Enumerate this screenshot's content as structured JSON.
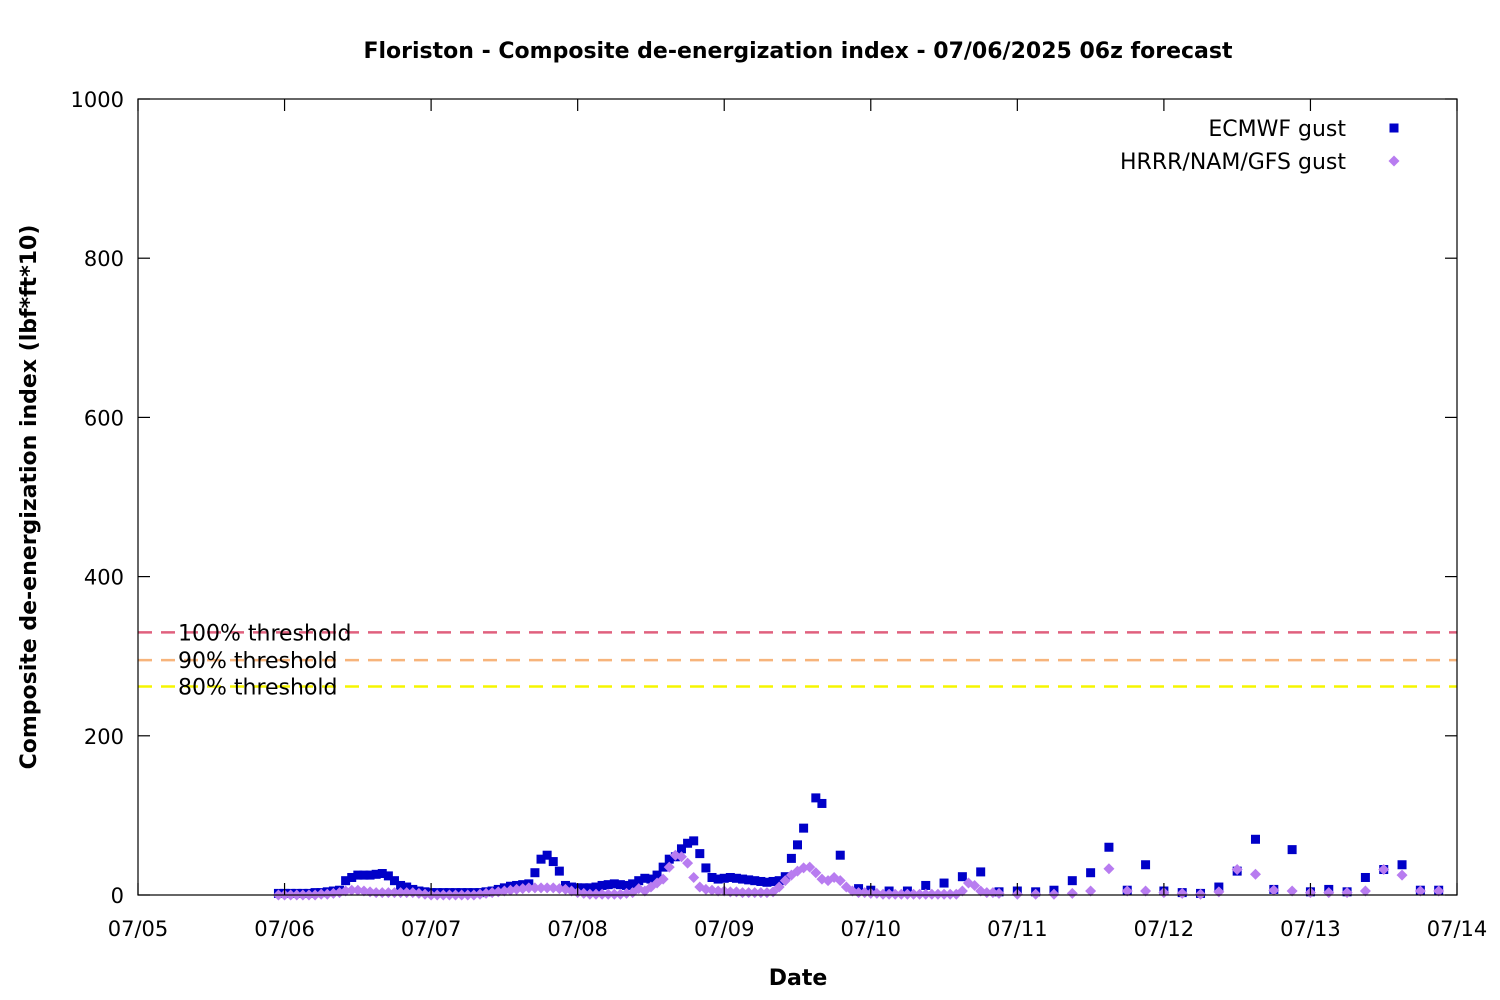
{
  "chart_data": {
    "type": "scatter",
    "title": "Floriston - Composite de-energization index - 07/06/2025 06z forecast",
    "xlabel": "Date",
    "ylabel": "Composite de-energization index (lbf*ft*10)",
    "x_start": "07/05",
    "x_end": "07/14",
    "xlim_days": [
      0,
      9
    ],
    "x_tick_labels": [
      "07/05",
      "07/06",
      "07/07",
      "07/08",
      "07/09",
      "07/10",
      "07/11",
      "07/12",
      "07/13",
      "07/14"
    ],
    "ylim": [
      0,
      1000
    ],
    "y_tick_labels": [
      "0",
      "200",
      "400",
      "600",
      "800",
      "1000"
    ],
    "y_ticks": [
      0,
      200,
      400,
      600,
      800,
      1000
    ],
    "grid": false,
    "legend_position": "top-right",
    "thresholds": [
      {
        "label": "100% threshold",
        "value": 330,
        "color": "#e0607e"
      },
      {
        "label": "90% threshold",
        "value": 295,
        "color": "#f7b47b"
      },
      {
        "label": "80% threshold",
        "value": 262,
        "color": "#f5f500"
      }
    ],
    "series": [
      {
        "name": "ECMWF gust",
        "marker": "square",
        "color": "#0000c8",
        "points": [
          [
            "07/05 23z",
            2
          ],
          [
            "07/06 00z",
            2
          ],
          [
            "07/06 01z",
            2
          ],
          [
            "07/06 02z",
            2
          ],
          [
            "07/06 03z",
            2
          ],
          [
            "07/06 04z",
            2
          ],
          [
            "07/06 05z",
            3
          ],
          [
            "07/06 06z",
            3
          ],
          [
            "07/06 07z",
            4
          ],
          [
            "07/06 08z",
            5
          ],
          [
            "07/06 09z",
            6
          ],
          [
            "07/06 10z",
            18
          ],
          [
            "07/06 11z",
            22
          ],
          [
            "07/06 12z",
            25
          ],
          [
            "07/06 13z",
            25
          ],
          [
            "07/06 14z",
            25
          ],
          [
            "07/06 15z",
            26
          ],
          [
            "07/06 16z",
            27
          ],
          [
            "07/06 17z",
            24
          ],
          [
            "07/06 18z",
            18
          ],
          [
            "07/06 19z",
            12
          ],
          [
            "07/06 20z",
            10
          ],
          [
            "07/06 21z",
            7
          ],
          [
            "07/06 22z",
            5
          ],
          [
            "07/06 23z",
            4
          ],
          [
            "07/07 00z",
            3
          ],
          [
            "07/07 01z",
            3
          ],
          [
            "07/07 02z",
            3
          ],
          [
            "07/07 03z",
            3
          ],
          [
            "07/07 04z",
            3
          ],
          [
            "07/07 05z",
            3
          ],
          [
            "07/07 06z",
            3
          ],
          [
            "07/07 07z",
            3
          ],
          [
            "07/07 08z",
            3
          ],
          [
            "07/07 09z",
            4
          ],
          [
            "07/07 10z",
            5
          ],
          [
            "07/07 11z",
            7
          ],
          [
            "07/07 12z",
            9
          ],
          [
            "07/07 13z",
            11
          ],
          [
            "07/07 14z",
            12
          ],
          [
            "07/07 15z",
            13
          ],
          [
            "07/07 16z",
            14
          ],
          [
            "07/07 17z",
            28
          ],
          [
            "07/07 18z",
            45
          ],
          [
            "07/07 19z",
            50
          ],
          [
            "07/07 20z",
            42
          ],
          [
            "07/07 21z",
            30
          ],
          [
            "07/07 22z",
            12
          ],
          [
            "07/07 23z",
            10
          ],
          [
            "07/08 00z",
            9
          ],
          [
            "07/08 01z",
            9
          ],
          [
            "07/08 02z",
            9
          ],
          [
            "07/08 03z",
            10
          ],
          [
            "07/08 04z",
            12
          ],
          [
            "07/08 05z",
            13
          ],
          [
            "07/08 06z",
            14
          ],
          [
            "07/08 07z",
            13
          ],
          [
            "07/08 08z",
            12
          ],
          [
            "07/08 09z",
            14
          ],
          [
            "07/08 10z",
            18
          ],
          [
            "07/08 11z",
            21
          ],
          [
            "07/08 12z",
            20
          ],
          [
            "07/08 13z",
            25
          ],
          [
            "07/08 14z",
            35
          ],
          [
            "07/08 15z",
            45
          ],
          [
            "07/08 16z",
            48
          ],
          [
            "07/08 17z",
            58
          ],
          [
            "07/08 18z",
            65
          ],
          [
            "07/08 19z",
            68
          ],
          [
            "07/08 20z",
            52
          ],
          [
            "07/08 21z",
            34
          ],
          [
            "07/08 22z",
            22
          ],
          [
            "07/08 23z",
            20
          ],
          [
            "07/09 00z",
            21
          ],
          [
            "07/09 01z",
            22
          ],
          [
            "07/09 02z",
            21
          ],
          [
            "07/09 03z",
            20
          ],
          [
            "07/09 04z",
            19
          ],
          [
            "07/09 05z",
            18
          ],
          [
            "07/09 06z",
            17
          ],
          [
            "07/09 07z",
            16
          ],
          [
            "07/09 08z",
            17
          ],
          [
            "07/09 09z",
            18
          ],
          [
            "07/09 10z",
            23
          ],
          [
            "07/09 11z",
            46
          ],
          [
            "07/09 12z",
            63
          ],
          [
            "07/09 13z",
            84
          ],
          [
            "07/09 15z",
            122
          ],
          [
            "07/09 16z",
            115
          ],
          [
            "07/09 19z",
            50
          ],
          [
            "07/09 22z",
            8
          ],
          [
            "07/10 00z",
            6
          ],
          [
            "07/10 03z",
            5
          ],
          [
            "07/10 06z",
            5
          ],
          [
            "07/10 09z",
            12
          ],
          [
            "07/10 12z",
            15
          ],
          [
            "07/10 15z",
            23
          ],
          [
            "07/10 18z",
            29
          ],
          [
            "07/10 21z",
            4
          ],
          [
            "07/11 00z",
            5
          ],
          [
            "07/11 03z",
            4
          ],
          [
            "07/11 06z",
            6
          ],
          [
            "07/11 09z",
            18
          ],
          [
            "07/11 12z",
            28
          ],
          [
            "07/11 15z",
            60
          ],
          [
            "07/11 18z",
            6
          ],
          [
            "07/11 21z",
            38
          ],
          [
            "07/12 00z",
            5
          ],
          [
            "07/12 03z",
            3
          ],
          [
            "07/12 06z",
            2
          ],
          [
            "07/12 09z",
            10
          ],
          [
            "07/12 12z",
            30
          ],
          [
            "07/12 15z",
            70
          ],
          [
            "07/12 18z",
            7
          ],
          [
            "07/12 21z",
            57
          ],
          [
            "07/13 00z",
            4
          ],
          [
            "07/13 03z",
            7
          ],
          [
            "07/13 06z",
            4
          ],
          [
            "07/13 09z",
            22
          ],
          [
            "07/13 12z",
            32
          ],
          [
            "07/13 15z",
            38
          ],
          [
            "07/13 18z",
            6
          ],
          [
            "07/13 21z",
            6
          ]
        ]
      },
      {
        "name": "HRRR/NAM/GFS gust",
        "marker": "diamond",
        "color": "#b87cf0",
        "points": [
          [
            "07/05 23z",
            0
          ],
          [
            "07/06 00z",
            0
          ],
          [
            "07/06 01z",
            0
          ],
          [
            "07/06 02z",
            0
          ],
          [
            "07/06 03z",
            0
          ],
          [
            "07/06 04z",
            0
          ],
          [
            "07/06 05z",
            0
          ],
          [
            "07/06 06z",
            1
          ],
          [
            "07/06 07z",
            1
          ],
          [
            "07/06 08z",
            2
          ],
          [
            "07/06 09z",
            3
          ],
          [
            "07/06 10z",
            5
          ],
          [
            "07/06 11z",
            6
          ],
          [
            "07/06 12z",
            6
          ],
          [
            "07/06 13z",
            5
          ],
          [
            "07/06 14z",
            4
          ],
          [
            "07/06 15z",
            3
          ],
          [
            "07/06 16z",
            3
          ],
          [
            "07/06 17z",
            3
          ],
          [
            "07/06 18z",
            3
          ],
          [
            "07/06 19z",
            3
          ],
          [
            "07/06 20z",
            3
          ],
          [
            "07/06 21z",
            3
          ],
          [
            "07/06 22z",
            2
          ],
          [
            "07/06 23z",
            1
          ],
          [
            "07/07 00z",
            0
          ],
          [
            "07/07 01z",
            0
          ],
          [
            "07/07 02z",
            0
          ],
          [
            "07/07 03z",
            0
          ],
          [
            "07/07 04z",
            0
          ],
          [
            "07/07 05z",
            0
          ],
          [
            "07/07 06z",
            0
          ],
          [
            "07/07 07z",
            0
          ],
          [
            "07/07 08z",
            1
          ],
          [
            "07/07 09z",
            2
          ],
          [
            "07/07 10z",
            3
          ],
          [
            "07/07 11z",
            4
          ],
          [
            "07/07 12z",
            5
          ],
          [
            "07/07 13z",
            6
          ],
          [
            "07/07 14z",
            7
          ],
          [
            "07/07 15z",
            8
          ],
          [
            "07/07 16z",
            9
          ],
          [
            "07/07 17z",
            9
          ],
          [
            "07/07 18z",
            9
          ],
          [
            "07/07 19z",
            9
          ],
          [
            "07/07 20z",
            9
          ],
          [
            "07/07 21z",
            8
          ],
          [
            "07/07 22z",
            7
          ],
          [
            "07/07 23z",
            5
          ],
          [
            "07/08 00z",
            3
          ],
          [
            "07/08 01z",
            2
          ],
          [
            "07/08 02z",
            1
          ],
          [
            "07/08 03z",
            1
          ],
          [
            "07/08 04z",
            1
          ],
          [
            "07/08 05z",
            1
          ],
          [
            "07/08 06z",
            1
          ],
          [
            "07/08 07z",
            1
          ],
          [
            "07/08 08z",
            2
          ],
          [
            "07/08 09z",
            3
          ],
          [
            "07/08 10z",
            8
          ],
          [
            "07/08 11z",
            5
          ],
          [
            "07/08 12z",
            10
          ],
          [
            "07/08 13z",
            15
          ],
          [
            "07/08 14z",
            20
          ],
          [
            "07/08 15z",
            35
          ],
          [
            "07/08 16z",
            50
          ],
          [
            "07/08 17z",
            48
          ],
          [
            "07/08 18z",
            40
          ],
          [
            "07/08 19z",
            22
          ],
          [
            "07/08 20z",
            10
          ],
          [
            "07/08 21z",
            7
          ],
          [
            "07/08 22z",
            6
          ],
          [
            "07/08 23z",
            5
          ],
          [
            "07/09 00z",
            5
          ],
          [
            "07/09 01z",
            4
          ],
          [
            "07/09 02z",
            4
          ],
          [
            "07/09 03z",
            3
          ],
          [
            "07/09 04z",
            3
          ],
          [
            "07/09 05z",
            3
          ],
          [
            "07/09 06z",
            3
          ],
          [
            "07/09 07z",
            3
          ],
          [
            "07/09 08z",
            4
          ],
          [
            "07/09 09z",
            10
          ],
          [
            "07/09 10z",
            18
          ],
          [
            "07/09 11z",
            25
          ],
          [
            "07/09 12z",
            30
          ],
          [
            "07/09 13z",
            34
          ],
          [
            "07/09 14z",
            35
          ],
          [
            "07/09 15z",
            28
          ],
          [
            "07/09 16z",
            20
          ],
          [
            "07/09 17z",
            18
          ],
          [
            "07/09 18z",
            22
          ],
          [
            "07/09 19z",
            18
          ],
          [
            "07/09 20z",
            10
          ],
          [
            "07/09 21z",
            5
          ],
          [
            "07/09 22z",
            3
          ],
          [
            "07/09 23z",
            3
          ],
          [
            "07/10 00z",
            2
          ],
          [
            "07/10 01z",
            2
          ],
          [
            "07/10 02z",
            1
          ],
          [
            "07/10 03z",
            1
          ],
          [
            "07/10 04z",
            1
          ],
          [
            "07/10 05z",
            1
          ],
          [
            "07/10 06z",
            1
          ],
          [
            "07/10 07z",
            1
          ],
          [
            "07/10 08z",
            1
          ],
          [
            "07/10 09z",
            1
          ],
          [
            "07/10 10z",
            1
          ],
          [
            "07/10 11z",
            1
          ],
          [
            "07/10 12z",
            1
          ],
          [
            "07/10 13z",
            1
          ],
          [
            "07/10 14z",
            1
          ],
          [
            "07/10 15z",
            5
          ],
          [
            "07/10 16z",
            15
          ],
          [
            "07/10 17z",
            12
          ],
          [
            "07/10 18z",
            5
          ],
          [
            "07/10 19z",
            3
          ],
          [
            "07/10 20z",
            3
          ],
          [
            "07/10 21z",
            2
          ],
          [
            "07/11 00z",
            1
          ],
          [
            "07/11 03z",
            1
          ],
          [
            "07/11 06z",
            1
          ],
          [
            "07/11 09z",
            2
          ],
          [
            "07/11 12z",
            5
          ],
          [
            "07/11 15z",
            33
          ],
          [
            "07/11 18z",
            5
          ],
          [
            "07/11 21z",
            5
          ],
          [
            "07/12 00z",
            3
          ],
          [
            "07/12 03z",
            2
          ],
          [
            "07/12 06z",
            1
          ],
          [
            "07/12 09z",
            4
          ],
          [
            "07/12 12z",
            32
          ],
          [
            "07/12 15z",
            26
          ],
          [
            "07/12 18z",
            6
          ],
          [
            "07/12 21z",
            5
          ],
          [
            "07/13 00z",
            3
          ],
          [
            "07/13 03z",
            3
          ],
          [
            "07/13 06z",
            3
          ],
          [
            "07/13 09z",
            5
          ],
          [
            "07/13 12z",
            32
          ],
          [
            "07/13 15z",
            25
          ],
          [
            "07/13 18z",
            5
          ],
          [
            "07/13 21z",
            5
          ]
        ]
      }
    ]
  }
}
